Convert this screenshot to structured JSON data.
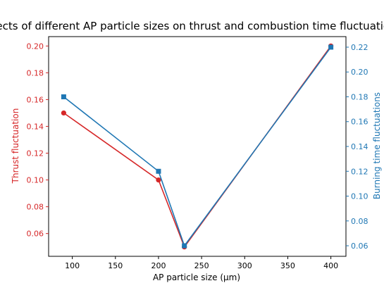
{
  "chart_data": {
    "type": "line",
    "title": "Effects of different AP particle sizes on thrust and combustion time fluctuations",
    "xlabel": "AP particle size (μm)",
    "ylabel_left": "Thrust fluctuation",
    "ylabel_right": "Burning time fluctuations",
    "xlim": [
      72.5,
      417.5
    ],
    "ylim_left": [
      0.043,
      0.207
    ],
    "ylim_right": [
      0.0515,
      0.2285
    ],
    "x_ticks": [
      100,
      150,
      200,
      250,
      300,
      350,
      400
    ],
    "y_left_ticks": [
      0.06,
      0.08,
      0.1,
      0.12,
      0.14,
      0.16,
      0.18,
      0.2
    ],
    "y_right_ticks": [
      0.06,
      0.08,
      0.1,
      0.12,
      0.14,
      0.16,
      0.18,
      0.2,
      0.22
    ],
    "grid": false,
    "series": [
      {
        "axis": "left",
        "color": "#d62728",
        "marker": "circle",
        "x": [
          90,
          200,
          230,
          400
        ],
        "y": [
          0.15,
          0.1,
          0.05,
          0.2
        ]
      },
      {
        "axis": "right",
        "color": "#1f77b4",
        "marker": "square",
        "x": [
          90,
          200,
          230,
          400
        ],
        "y": [
          0.18,
          0.12,
          0.06,
          0.22
        ]
      }
    ],
    "colors": {
      "left_axis": "#d62728",
      "right_axis": "#1f77b4",
      "frame": "#000000"
    }
  }
}
